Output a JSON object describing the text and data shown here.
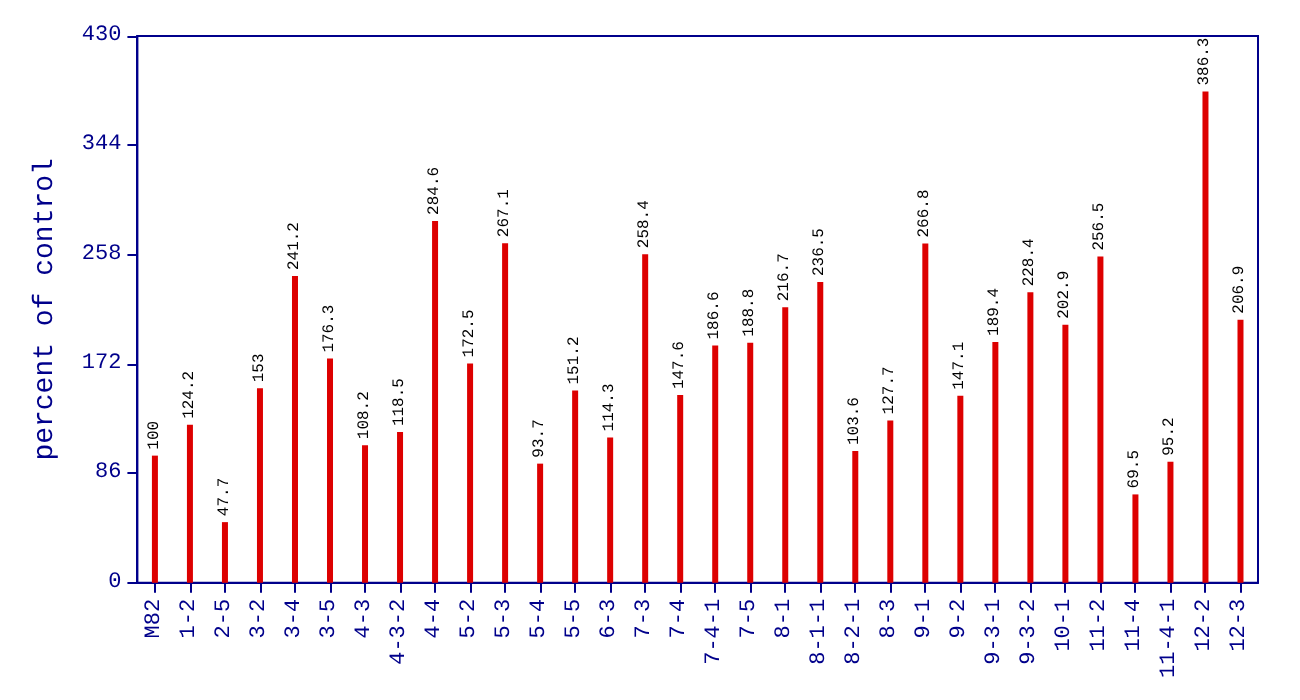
{
  "chart_data": {
    "type": "bar",
    "ylabel": "percent of control",
    "categories": [
      "M82",
      "1-2",
      "2-5",
      "3-2",
      "3-4",
      "3-5",
      "4-3",
      "4-3-2",
      "4-4",
      "5-2",
      "5-3",
      "5-4",
      "5-5",
      "6-3",
      "7-3",
      "7-4",
      "7-4-1",
      "7-5",
      "8-1",
      "8-1-1",
      "8-2-1",
      "8-3",
      "9-1",
      "9-2",
      "9-3-1",
      "9-3-2",
      "10-1",
      "11-2",
      "11-4",
      "11-4-1",
      "12-2",
      "12-3"
    ],
    "values": [
      100,
      124.2,
      47.7,
      153,
      241.2,
      176.3,
      108.2,
      118.5,
      284.6,
      172.5,
      267.1,
      93.7,
      151.2,
      114.3,
      258.4,
      147.6,
      186.6,
      188.8,
      216.7,
      236.5,
      103.6,
      127.7,
      266.8,
      147.1,
      189.4,
      228.4,
      202.9,
      256.5,
      69.5,
      95.2,
      386.3,
      206.9
    ],
    "color": "#dd0000",
    "ylim": [
      0,
      430
    ],
    "yticks": [
      0,
      86,
      172,
      258,
      344,
      430
    ],
    "grid": false,
    "data_labels": true
  }
}
